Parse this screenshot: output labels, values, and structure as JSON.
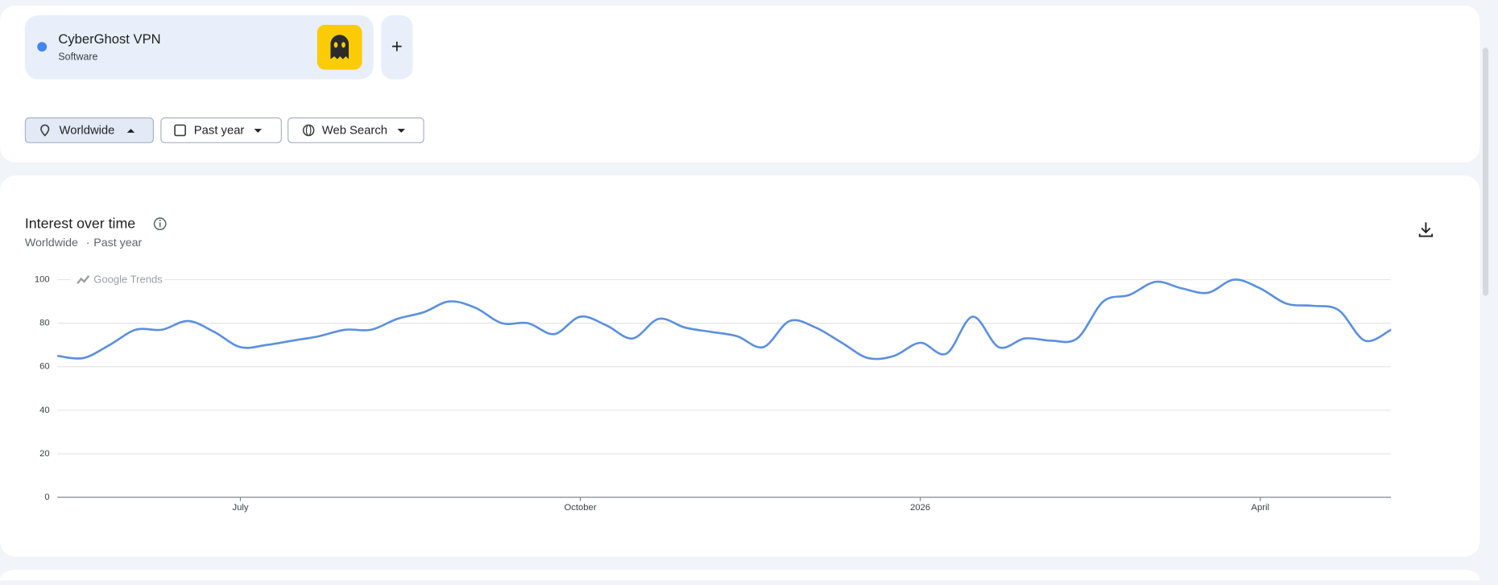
{
  "search_terms": [
    {
      "name": "CyberGhost VPN",
      "category": "Software"
    }
  ],
  "add_button": "+",
  "filters": {
    "location": "Worldwide",
    "period": "Past year",
    "property": "Web Search"
  },
  "card": {
    "title": "Interest over time",
    "subtitle_location": "Worldwide",
    "separator": "·",
    "subtitle_period": "Past year"
  },
  "watermark": "Google Trends",
  "chart_data": {
    "type": "line",
    "categories": [
      null,
      null,
      null,
      null,
      null,
      null,
      null,
      "July",
      null,
      null,
      null,
      null,
      null,
      null,
      null,
      null,
      null,
      null,
      null,
      null,
      "October",
      null,
      null,
      null,
      null,
      null,
      null,
      null,
      null,
      null,
      null,
      null,
      null,
      "2026",
      null,
      null,
      null,
      null,
      null,
      null,
      null,
      null,
      null,
      null,
      null,
      null,
      "April",
      null,
      null,
      null,
      null,
      null
    ],
    "values": [
      65,
      64,
      70,
      77,
      77,
      81,
      76,
      69,
      70,
      72,
      74,
      77,
      77,
      82,
      85,
      90,
      87,
      80,
      80,
      75,
      83,
      79,
      73,
      82,
      78,
      76,
      74,
      69,
      81,
      78,
      71,
      64,
      65,
      71,
      66,
      83,
      69,
      73,
      72,
      73,
      90,
      93,
      99,
      96,
      94,
      100,
      96,
      89,
      88,
      86,
      72,
      77
    ],
    "color": "#5b8fdf",
    "ylim": [
      0,
      100
    ],
    "yticks": [
      0,
      20,
      40,
      60,
      80,
      100
    ],
    "grid": true
  }
}
